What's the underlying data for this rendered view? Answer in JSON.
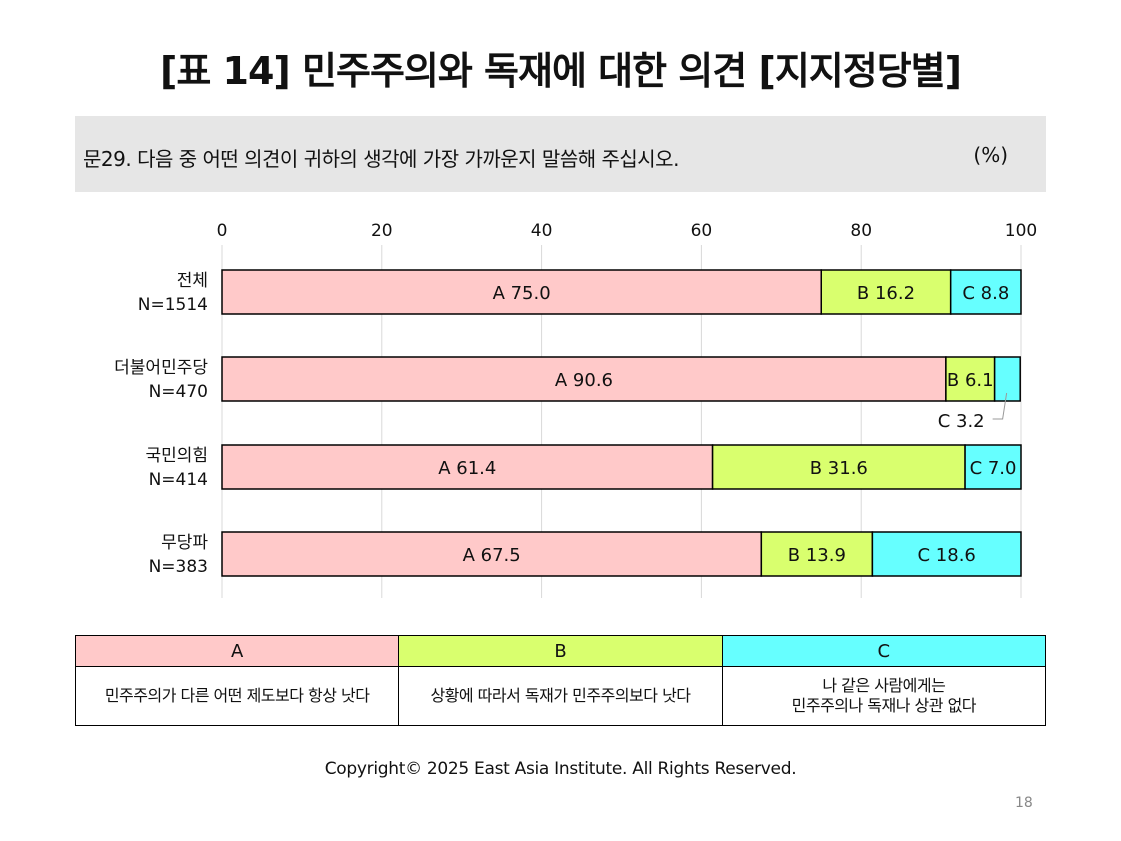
{
  "title": "[표 14] 민주주의와 독재에 대한 의견 [지지정당별]",
  "question": "문29. 다음 중 어떤 의견이 귀하의 생각에 가장 가까운지 말씀해 주십시오.",
  "unit": "(%)",
  "colors": {
    "A": "#ffc9c9",
    "B": "#d9ff6e",
    "C": "#66ffff",
    "grid": "#d9d9d9",
    "border": "#000000"
  },
  "chart_data": {
    "type": "bar",
    "orientation": "horizontal",
    "stacked": true,
    "xlim": [
      0,
      100
    ],
    "xticks": [
      0,
      20,
      40,
      60,
      80,
      100
    ],
    "grid": true,
    "categories": [
      {
        "name": "전체",
        "n": "N=1514"
      },
      {
        "name": "더불어민주당",
        "n": "N=470"
      },
      {
        "name": "국민의힘",
        "n": "N=414"
      },
      {
        "name": "무당파",
        "n": "N=383"
      }
    ],
    "series": [
      {
        "name": "A",
        "values": [
          75.0,
          90.6,
          61.4,
          67.5
        ],
        "labels": [
          "A 75.0",
          "A 90.6",
          "A 61.4",
          "A 67.5"
        ]
      },
      {
        "name": "B",
        "values": [
          16.2,
          6.1,
          31.6,
          13.9
        ],
        "labels": [
          "B 16.2",
          "B 6.1",
          "B 31.6",
          "B 13.9"
        ]
      },
      {
        "name": "C",
        "values": [
          8.8,
          3.2,
          7.0,
          18.6
        ],
        "labels": [
          "C 8.8",
          "C 3.2",
          "C 7.0",
          "C 18.6"
        ]
      }
    ]
  },
  "legend": [
    {
      "key": "A",
      "text": [
        "민주주의가 다른 어떤 제도보다 항상 낫다"
      ]
    },
    {
      "key": "B",
      "text": [
        "상황에 따라서 독재가 민주주의보다 낫다"
      ]
    },
    {
      "key": "C",
      "text": [
        "나 같은 사람에게는",
        "민주주의나 독재나 상관 없다"
      ]
    }
  ],
  "copyright": "Copyright© 2025 East Asia Institute. All Rights Reserved.",
  "page_number": "18"
}
